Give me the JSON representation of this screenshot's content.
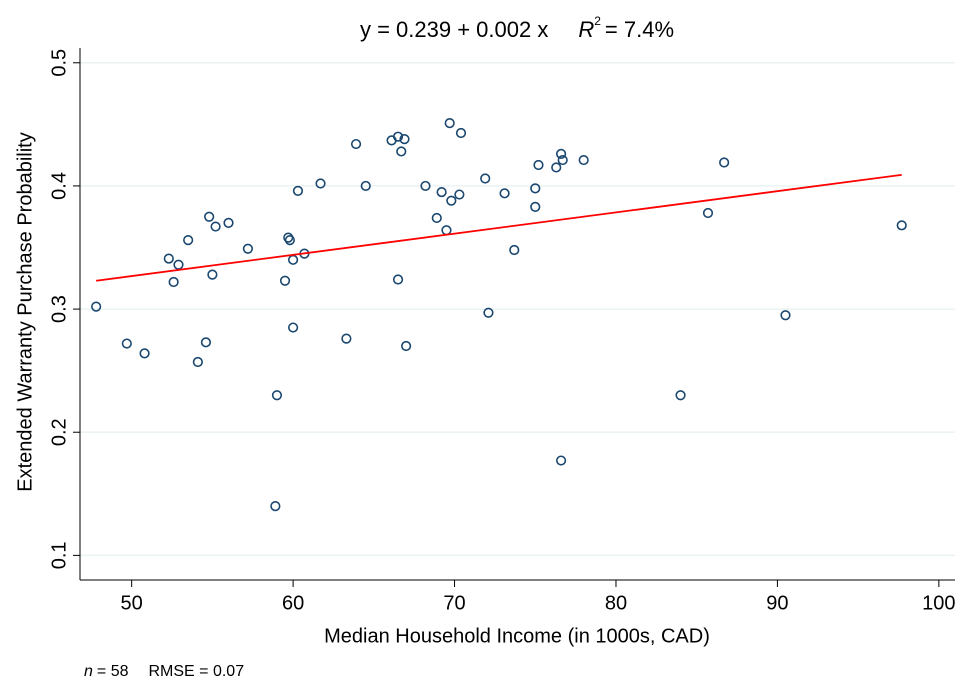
{
  "chart_data": {
    "type": "scatter",
    "title": "y = 0.239 + 0.002 x",
    "r_squared": {
      "symbol": "R",
      "sup": "2",
      "text": "= 7.4%"
    },
    "x_label": "Median Household Income (in 1000s, CAD)",
    "y_label": "Extended Warranty Purchase Probability",
    "note": {
      "symbol": "n",
      "text": "= 58",
      "rmse": "RMSE = 0.07"
    },
    "xlim": [
      46.8,
      101
    ],
    "ylim": [
      0.08,
      0.512
    ],
    "xticks": [
      50,
      60,
      70,
      80,
      90,
      100
    ],
    "yticks": [
      0.1,
      0.2,
      0.3,
      0.4,
      0.5
    ],
    "grid": true,
    "marker_color": "#1a476f",
    "fit": {
      "color": "#ff0000",
      "x": [
        47.8,
        97.7
      ],
      "y": [
        0.323,
        0.409
      ]
    },
    "x": [
      47.8,
      49.7,
      50.8,
      52.3,
      52.6,
      52.9,
      53.5,
      54.1,
      54.6,
      54.8,
      55.0,
      55.2,
      56.0,
      57.2,
      58.9,
      59.0,
      59.5,
      59.7,
      59.8,
      60.0,
      60.0,
      60.3,
      60.7,
      61.7,
      63.3,
      63.9,
      64.5,
      66.1,
      66.5,
      66.5,
      66.7,
      66.9,
      67.0,
      68.2,
      68.9,
      69.2,
      69.5,
      69.7,
      69.8,
      70.3,
      70.4,
      71.9,
      72.1,
      73.1,
      73.7,
      75.0,
      75.0,
      75.2,
      76.3,
      76.6,
      76.7,
      76.6,
      78.0,
      84.0,
      85.7,
      86.7,
      90.5,
      97.7
    ],
    "y": [
      0.302,
      0.272,
      0.264,
      0.341,
      0.322,
      0.336,
      0.356,
      0.257,
      0.273,
      0.375,
      0.328,
      0.367,
      0.37,
      0.349,
      0.14,
      0.23,
      0.323,
      0.358,
      0.356,
      0.34,
      0.285,
      0.396,
      0.345,
      0.402,
      0.276,
      0.434,
      0.4,
      0.437,
      0.44,
      0.324,
      0.428,
      0.438,
      0.27,
      0.4,
      0.374,
      0.395,
      0.364,
      0.451,
      0.388,
      0.393,
      0.443,
      0.406,
      0.297,
      0.394,
      0.348,
      0.383,
      0.398,
      0.417,
      0.415,
      0.426,
      0.421,
      0.177,
      0.421,
      0.23,
      0.378,
      0.419,
      0.295,
      0.368
    ]
  }
}
